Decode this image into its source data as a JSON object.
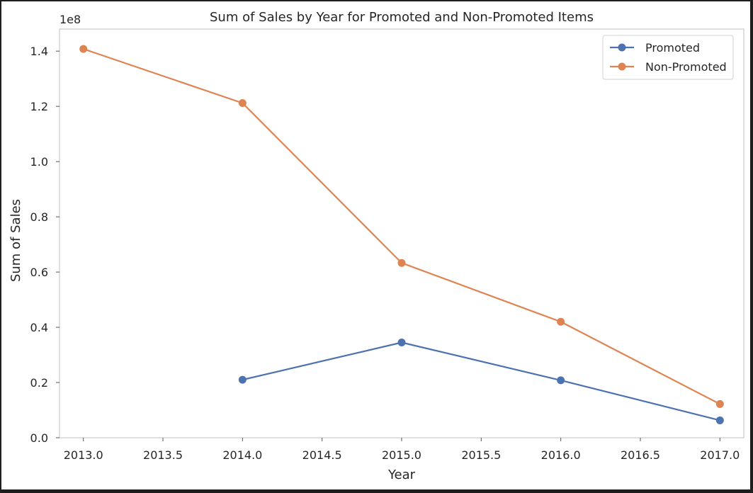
{
  "chart_data": {
    "type": "line",
    "title": "Sum of Sales by Year for Promoted and Non-Promoted Items",
    "xlabel": "Year",
    "ylabel": "Sum of Sales",
    "y_offset_label": "1e8",
    "y_scale_factor": 100000000,
    "xlim": [
      2012.85,
      2017.15
    ],
    "ylim": [
      0,
      148000000
    ],
    "x_ticks": [
      2013.0,
      2013.5,
      2014.0,
      2014.5,
      2015.0,
      2015.5,
      2016.0,
      2016.5,
      2017.0
    ],
    "x_tick_labels": [
      "2013.0",
      "2013.5",
      "2014.0",
      "2014.5",
      "2015.0",
      "2015.5",
      "2016.0",
      "2016.5",
      "2017.0"
    ],
    "y_ticks": [
      0,
      20000000,
      40000000,
      60000000,
      80000000,
      100000000,
      120000000,
      140000000
    ],
    "y_tick_labels": [
      "0.0",
      "0.2",
      "0.4",
      "0.6",
      "0.8",
      "1.0",
      "1.2",
      "1.4"
    ],
    "grid": false,
    "legend_position": "top-right",
    "series": [
      {
        "name": "Promoted",
        "color": "#4c72b0",
        "x": [
          2014,
          2015,
          2016,
          2017
        ],
        "y": [
          21000000,
          34500000,
          20800000,
          6300000
        ]
      },
      {
        "name": "Non-Promoted",
        "color": "#dd8452",
        "x": [
          2013,
          2014,
          2015,
          2016,
          2017
        ],
        "y": [
          140800000,
          121200000,
          63300000,
          42000000,
          12200000
        ]
      }
    ]
  }
}
